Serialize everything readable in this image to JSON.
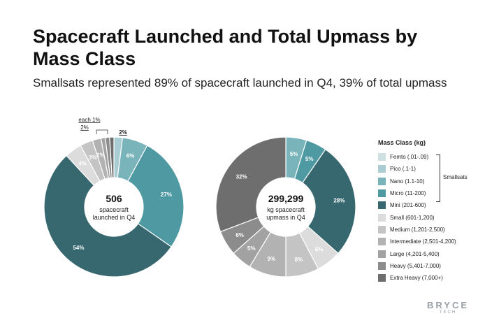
{
  "title": "Spacecraft Launched and Total Upmass by Mass Class",
  "subtitle": "Smallsats represented 89% of spacecraft launched in Q4, 39% of total upmass",
  "legend": {
    "title": "Mass Class (kg)",
    "items": [
      {
        "label": "Femto (.01-.09)",
        "color": "#cfe0e3"
      },
      {
        "label": "Pico (.1-1)",
        "color": "#a9cdd2"
      },
      {
        "label": "Nano (1.1-10)",
        "color": "#79b4bb"
      },
      {
        "label": "Micro (11-200)",
        "color": "#4f9aa2"
      },
      {
        "label": "Mini (201-600)",
        "color": "#376870"
      },
      {
        "label": "Small (601-1,200)",
        "color": "#dcdcdc"
      },
      {
        "label": "Medium (1,201-2,500)",
        "color": "#c4c4c4"
      },
      {
        "label": "Intermediate (2,501-4,200)",
        "color": "#b2b2b2"
      },
      {
        "label": "Large (4,201-5,400)",
        "color": "#a2a2a2"
      },
      {
        "label": "Heavy (5,401-7,000)",
        "color": "#8c8c8c"
      },
      {
        "label": "Extra Heavy (7,000+)",
        "color": "#6e6e6e"
      }
    ],
    "group_label": "Smallsats"
  },
  "logo": {
    "main": "BRYCE",
    "sub": "TECH"
  },
  "chart_data": [
    {
      "type": "pie",
      "center_value": "506",
      "center_label": [
        "spacecraft",
        "launched in Q4"
      ],
      "slices": [
        {
          "class": "Femto (.01-.09)",
          "value": 0,
          "label": ""
        },
        {
          "class": "Pico (.1-1)",
          "value": 2,
          "label": "2%"
        },
        {
          "class": "Nano (1.1-10)",
          "value": 6,
          "label": "6%"
        },
        {
          "class": "Micro (11-200)",
          "value": 27,
          "label": "27%"
        },
        {
          "class": "Mini (201-600)",
          "value": 54,
          "label": "54%"
        },
        {
          "class": "Small (601-1,200)",
          "value": 4,
          "label": "4%"
        },
        {
          "class": "Medium (1,201-2,500)",
          "value": 3,
          "label": "3%"
        },
        {
          "class": "Intermediate (2,501-4,200)",
          "value": 2,
          "label": "2%"
        },
        {
          "class": "Large (4,201-5,400)",
          "value": 1,
          "label": ""
        },
        {
          "class": "Heavy (5,401-7,000)",
          "value": 1,
          "label": ""
        },
        {
          "class": "Extra Heavy (7,000+)",
          "value": 1,
          "label": ""
        }
      ],
      "annotation": "each 1%"
    },
    {
      "type": "pie",
      "center_value": "299,299",
      "center_label": [
        "kg spacecraft",
        "upmass in Q4"
      ],
      "slices": [
        {
          "class": "Femto (.01-.09)",
          "value": 0,
          "label": ""
        },
        {
          "class": "Pico (.1-1)",
          "value": 0,
          "label": ""
        },
        {
          "class": "Nano (1.1-10)",
          "value": 5,
          "label": "5%"
        },
        {
          "class": "Micro (11-200)",
          "value": 5,
          "label": "5%"
        },
        {
          "class": "Mini (201-600)",
          "value": 28,
          "label": "28%"
        },
        {
          "class": "Small (601-1,200)",
          "value": 6,
          "label": "6%"
        },
        {
          "class": "Medium (1,201-2,500)",
          "value": 8,
          "label": "8%"
        },
        {
          "class": "Intermediate (2,501-4,200)",
          "value": 9,
          "label": "9%"
        },
        {
          "class": "Large (4,201-5,400)",
          "value": 5,
          "label": "5%"
        },
        {
          "class": "Heavy (5,401-7,000)",
          "value": 6,
          "label": "6%"
        },
        {
          "class": "Extra Heavy (7,000+)",
          "value": 32,
          "label": "32%"
        }
      ]
    }
  ]
}
